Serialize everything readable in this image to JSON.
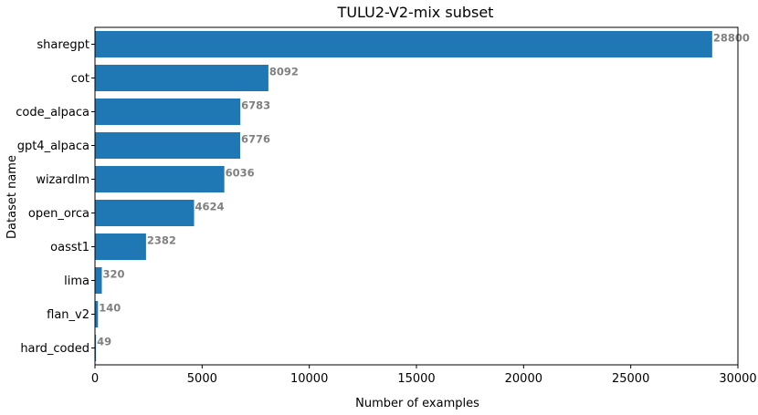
{
  "chart_data": {
    "type": "bar",
    "orientation": "horizontal",
    "title": "TULU2-V2-mix subset",
    "xlabel": "Number of examples",
    "ylabel": "Dataset name",
    "categories": [
      "sharegpt",
      "cot",
      "code_alpaca",
      "gpt4_alpaca",
      "wizardlm",
      "open_orca",
      "oasst1",
      "lima",
      "flan_v2",
      "hard_coded"
    ],
    "values": [
      28800,
      8092,
      6783,
      6776,
      6036,
      4624,
      2382,
      320,
      140,
      49
    ],
    "data_labels": [
      "28800",
      "8092",
      "6783",
      "6776",
      "6036",
      "4624",
      "2382",
      "320",
      "140",
      "49"
    ],
    "xlim": [
      0,
      30000
    ],
    "xticks": [
      0,
      5000,
      10000,
      15000,
      20000,
      25000,
      30000
    ],
    "xtick_labels": [
      "0",
      "5000",
      "10000",
      "15000",
      "20000",
      "25000",
      "30000"
    ],
    "grid": false,
    "colors": {
      "bar": "#1f77b4",
      "data_label": "#808080",
      "axis": "#000000"
    }
  }
}
